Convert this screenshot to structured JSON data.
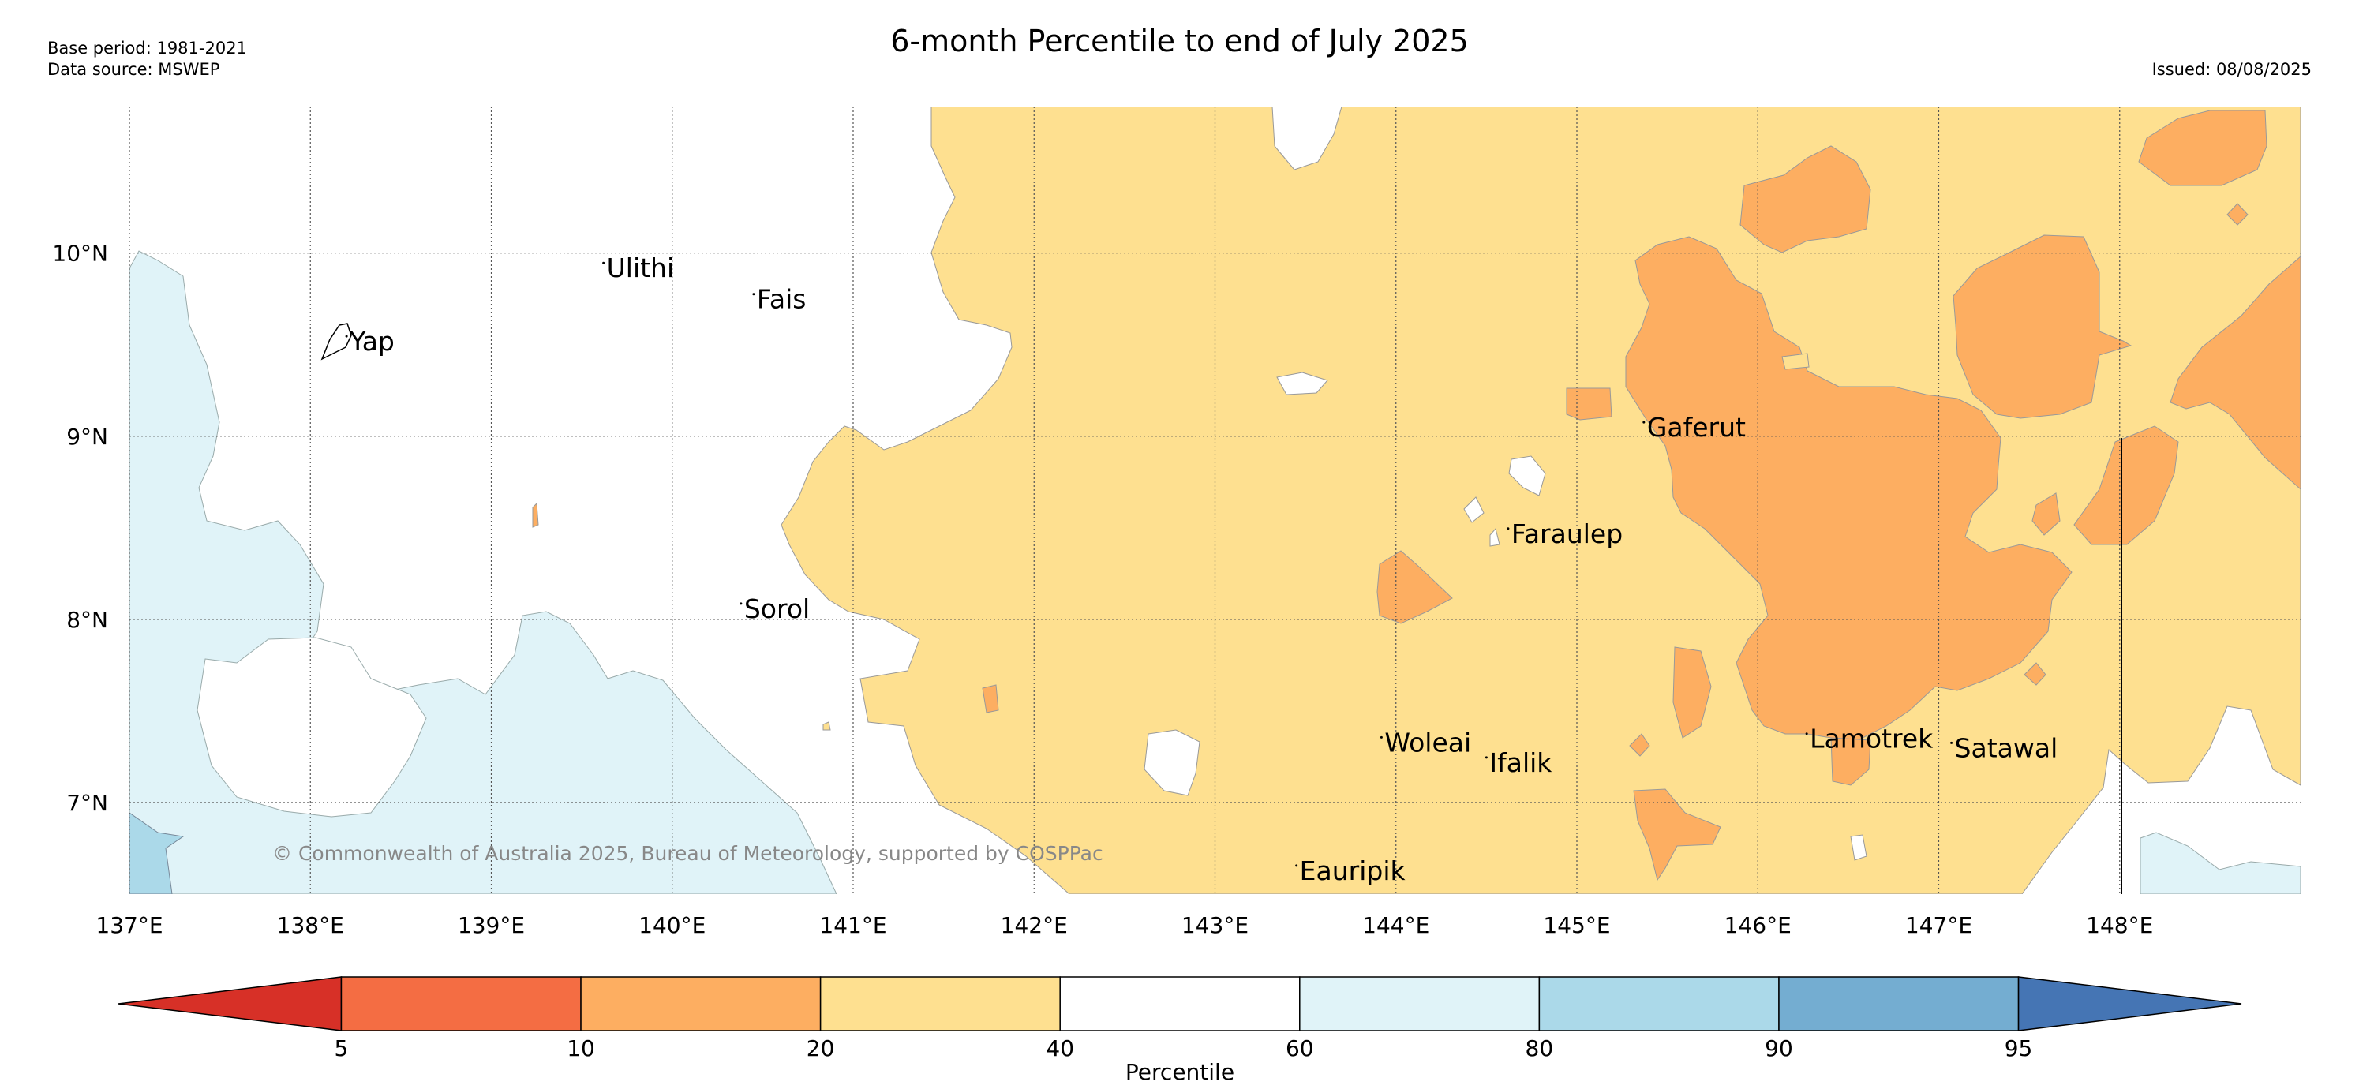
{
  "header": {
    "title": "6-month Percentile to end of July 2025",
    "base_period": "Base period: 1981-2021",
    "data_source": "Data source: MSWEP",
    "issued": "Issued: 08/08/2025"
  },
  "map": {
    "lon_range": [
      137.0,
      149.0
    ],
    "lat_range": [
      6.5,
      10.8
    ],
    "lon_ticks": [
      "137°E",
      "138°E",
      "139°E",
      "140°E",
      "141°E",
      "142°E",
      "143°E",
      "144°E",
      "145°E",
      "146°E",
      "147°E",
      "148°E"
    ],
    "lat_ticks": [
      "10°N",
      "9°N",
      "8°N",
      "7°N"
    ],
    "gridlines": true,
    "places": [
      {
        "name": "Ulithi",
        "lon": 139.62,
        "lat": 9.92
      },
      {
        "name": "Fais",
        "lon": 140.45,
        "lat": 9.75
      },
      {
        "name": "Yap",
        "lon": 138.2,
        "lat": 9.52
      },
      {
        "name": "Gaferut",
        "lon": 145.37,
        "lat": 9.05
      },
      {
        "name": "Faraulep",
        "lon": 144.62,
        "lat": 8.47
      },
      {
        "name": "Sorol",
        "lon": 140.38,
        "lat": 8.06
      },
      {
        "name": "Woleai",
        "lon": 143.92,
        "lat": 7.33
      },
      {
        "name": "Ifalik",
        "lon": 144.5,
        "lat": 7.22
      },
      {
        "name": "Lamotrek",
        "lon": 146.27,
        "lat": 7.35
      },
      {
        "name": "Satawal",
        "lon": 147.07,
        "lat": 7.3
      },
      {
        "name": "Eauripik",
        "lon": 143.45,
        "lat": 6.63
      }
    ],
    "copyright": "© Commonwealth of Australia 2025, Bureau of Meteorology, supported by COSPPac"
  },
  "legend": {
    "label": "Percentile",
    "boundaries": [
      "5",
      "10",
      "20",
      "40",
      "60",
      "80",
      "90",
      "95"
    ],
    "colors": [
      "#d73027",
      "#f46d43",
      "#fdae61",
      "#fee090",
      "#ffffff",
      "#e0f3f8",
      "#abd9e9",
      "#74add1",
      "#4575b4"
    ]
  }
}
